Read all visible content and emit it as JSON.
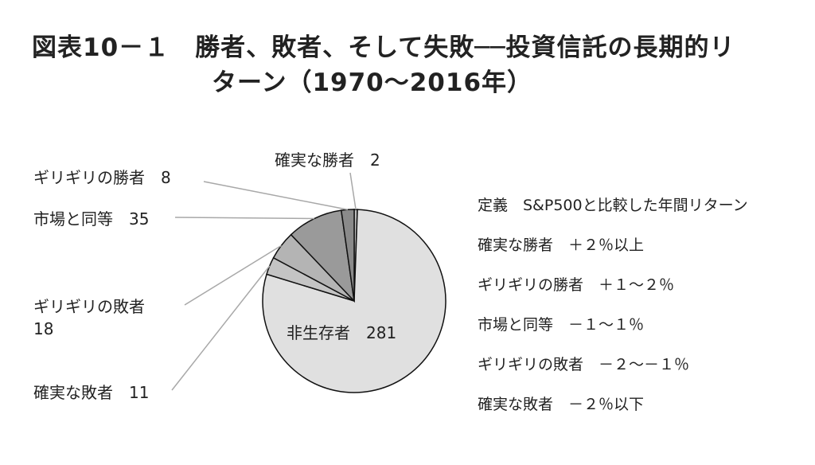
{
  "title": {
    "line1": "図表10－１　勝者、敗者、そして失敗──投資信託の長期的リ",
    "line2": "ターン（1970～2016年）"
  },
  "chart_data": {
    "type": "pie",
    "slices": [
      {
        "label": "確実な勝者",
        "value": 2,
        "color": "#bdbdbd"
      },
      {
        "label": "非生存者",
        "value": 281,
        "color": "#e0e0e0"
      },
      {
        "label": "確実な敗者",
        "value": 11,
        "color": "#c4c4c4"
      },
      {
        "label": "ギリギリの敗者",
        "value": 18,
        "color": "#b4b4b4"
      },
      {
        "label": "市場と同等",
        "value": 35,
        "color": "#9a9a9a"
      },
      {
        "label": "ギリギリの勝者",
        "value": 8,
        "color": "#8a8a8a"
      }
    ],
    "annotations": [
      {
        "text": "確実な勝者　2"
      },
      {
        "text": "ギリギリの勝者　8"
      },
      {
        "text": "市場と同等　35"
      },
      {
        "text": "ギリギリの敗者"
      },
      {
        "text": "18"
      },
      {
        "text": "確実な敗者　11"
      },
      {
        "text": "非生存者　281"
      }
    ]
  },
  "legend": {
    "definition": "定義　S&P500と比較した年間リターン",
    "items": [
      "確実な勝者　＋２％以上",
      "ギリギリの勝者　＋１～２％",
      "市場と同等　－１～１％",
      "ギリギリの敗者　－２～－１％",
      "確実な敗者　－２％以下"
    ]
  }
}
